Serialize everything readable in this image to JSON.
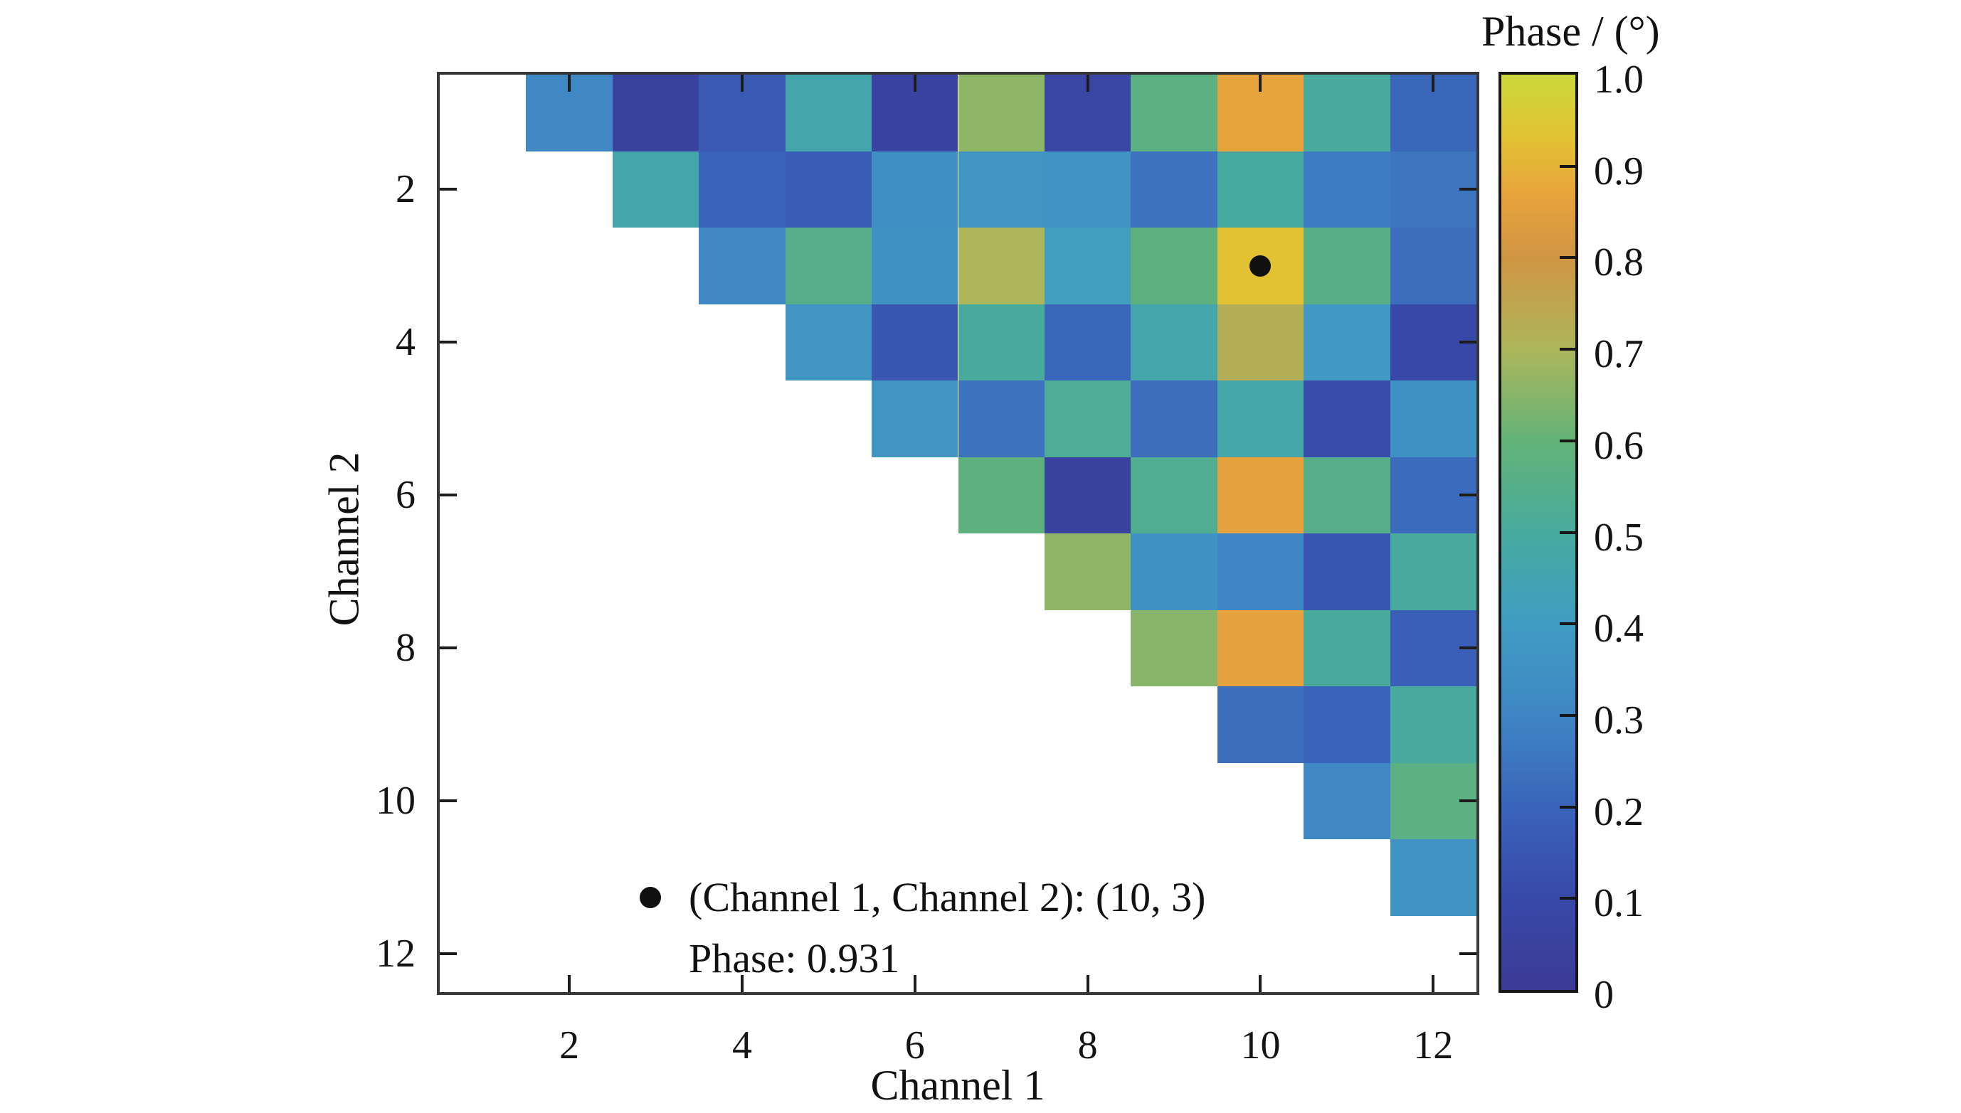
{
  "figure": {
    "xlabel": "Channel 1",
    "ylabel": "Channel 2",
    "colorbar_title": "Phase / (°)",
    "annotation": {
      "line1": "(Channel 1, Channel 2): (10, 3)",
      "line2": "Phase: 0.931"
    }
  },
  "chart_data": {
    "type": "heatmap",
    "title": "",
    "xlabel": "Channel 1",
    "ylabel": "Channel 2",
    "x_range": [
      1,
      12
    ],
    "y_range": [
      1,
      12
    ],
    "y_axis_direction": "downward",
    "grid": false,
    "x_tick_values": [
      2,
      4,
      6,
      8,
      10,
      12
    ],
    "x_tick_labels": [
      "2",
      "4",
      "6",
      "8",
      "10",
      "12"
    ],
    "y_tick_values": [
      2,
      4,
      6,
      8,
      10,
      12
    ],
    "y_tick_labels": [
      "2",
      "4",
      "6",
      "8",
      "10",
      "12"
    ],
    "colorbar": {
      "title": "Phase / (°)",
      "min": 0,
      "max": 1,
      "tick_values": [
        1.0,
        0.9,
        0.8,
        0.7,
        0.6,
        0.5,
        0.4,
        0.3,
        0.2,
        0.1,
        0
      ],
      "tick_labels": [
        "1.0",
        "0.9",
        "0.8",
        "0.7",
        "0.6",
        "0.5",
        "0.4",
        "0.3",
        "0.2",
        "0.1",
        "0"
      ],
      "position": "right"
    },
    "colormap_stops": [
      {
        "v": 0.0,
        "color": "#3c3a96"
      },
      {
        "v": 0.1,
        "color": "#3849a8"
      },
      {
        "v": 0.2,
        "color": "#3a64ba"
      },
      {
        "v": 0.3,
        "color": "#3f86c4"
      },
      {
        "v": 0.4,
        "color": "#409cc3"
      },
      {
        "v": 0.5,
        "color": "#48ab9e"
      },
      {
        "v": 0.6,
        "color": "#63b377"
      },
      {
        "v": 0.7,
        "color": "#adb65b"
      },
      {
        "v": 0.8,
        "color": "#d09544"
      },
      {
        "v": 0.87,
        "color": "#e8a43c"
      },
      {
        "v": 0.93,
        "color": "#e2c233"
      },
      {
        "v": 1.0,
        "color": "#cbd83b"
      }
    ],
    "matrix_rows_are_channel2_1_to_12_cols_channel1_1_to_12": true,
    "matrix": [
      [
        null,
        0.31,
        0.05,
        0.16,
        0.46,
        0.06,
        0.66,
        0.08,
        0.57,
        0.87,
        0.5,
        0.21
      ],
      [
        null,
        null,
        0.46,
        0.2,
        0.17,
        0.34,
        0.37,
        0.36,
        0.24,
        0.49,
        0.27,
        0.25
      ],
      [
        null,
        null,
        null,
        0.31,
        0.55,
        0.35,
        0.7,
        0.41,
        0.58,
        0.931,
        0.56,
        0.23
      ],
      [
        null,
        null,
        null,
        null,
        0.37,
        0.15,
        0.5,
        0.21,
        0.46,
        0.72,
        0.39,
        0.09
      ],
      [
        null,
        null,
        null,
        null,
        null,
        0.37,
        0.24,
        0.52,
        0.23,
        0.47,
        0.11,
        0.35
      ],
      [
        null,
        null,
        null,
        null,
        null,
        null,
        0.58,
        0.05,
        0.53,
        0.86,
        0.55,
        0.22
      ],
      [
        null,
        null,
        null,
        null,
        null,
        null,
        null,
        0.66,
        0.35,
        0.3,
        0.15,
        0.5
      ],
      [
        null,
        null,
        null,
        null,
        null,
        null,
        null,
        null,
        0.65,
        0.86,
        0.5,
        0.18
      ],
      [
        null,
        null,
        null,
        null,
        null,
        null,
        null,
        null,
        null,
        0.23,
        0.2,
        0.5
      ],
      [
        null,
        null,
        null,
        null,
        null,
        null,
        null,
        null,
        null,
        null,
        0.31,
        0.57
      ],
      [
        null,
        null,
        null,
        null,
        null,
        null,
        null,
        null,
        null,
        null,
        null,
        0.36
      ],
      [
        null,
        null,
        null,
        null,
        null,
        null,
        null,
        null,
        null,
        null,
        null,
        null
      ]
    ],
    "highlight_marker": {
      "channel1": 10,
      "channel2": 3,
      "phase": 0.931
    },
    "annotation_text": [
      "(Channel 1, Channel 2): (10, 3)",
      "Phase: 0.931"
    ]
  }
}
